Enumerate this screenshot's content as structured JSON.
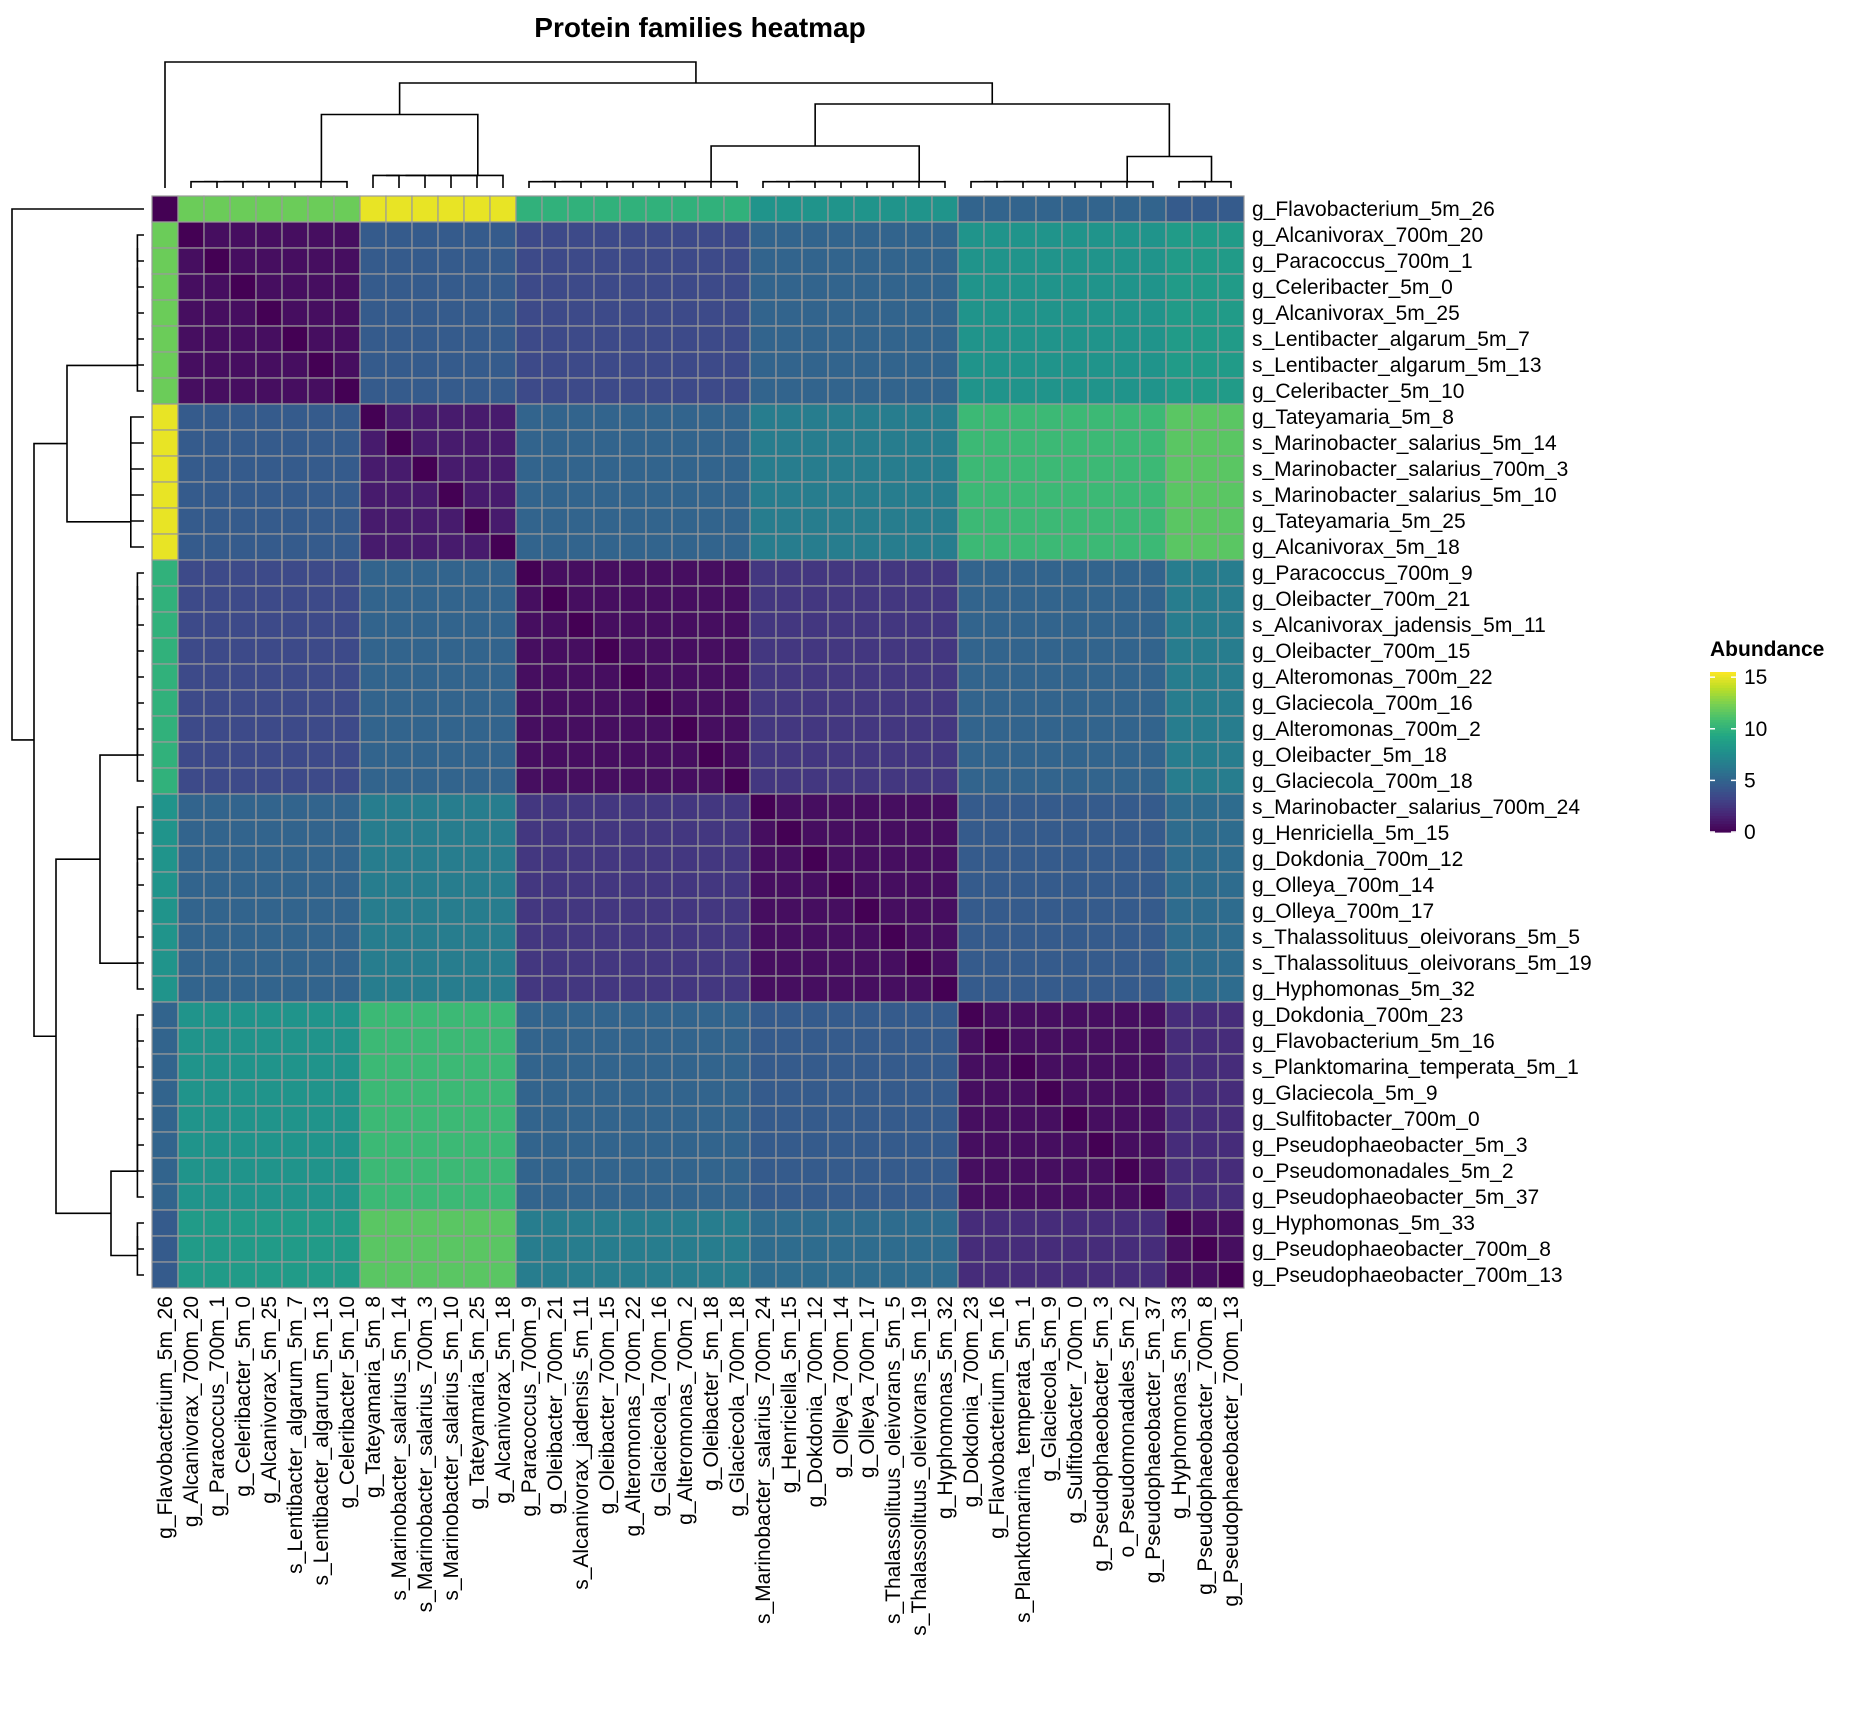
{
  "chart_data": {
    "type": "heatmap",
    "title": "Protein families heatmap",
    "legend": {
      "title": "Abundance",
      "ticks": [
        15,
        10,
        5,
        0
      ],
      "range": [
        0,
        15.5
      ],
      "placement": "right",
      "colormap": "viridis"
    },
    "row_labels": [
      "g_Flavobacterium_5m_26",
      "g_Alcanivorax_700m_20",
      "g_Paracoccus_700m_1",
      "g_Celeribacter_5m_0",
      "g_Alcanivorax_5m_25",
      "s_Lentibacter_algarum_5m_7",
      "s_Lentibacter_algarum_5m_13",
      "g_Celeribacter_5m_10",
      "g_Tateyamaria_5m_8",
      "s_Marinobacter_salarius_5m_14",
      "s_Marinobacter_salarius_700m_3",
      "s_Marinobacter_salarius_5m_10",
      "g_Tateyamaria_5m_25",
      "g_Alcanivorax_5m_18",
      "g_Paracoccus_700m_9",
      "g_Oleibacter_700m_21",
      "s_Alcanivorax_jadensis_5m_11",
      "g_Oleibacter_700m_15",
      "g_Alteromonas_700m_22",
      "g_Glaciecola_700m_16",
      "g_Alteromonas_700m_2",
      "g_Oleibacter_5m_18",
      "g_Glaciecola_700m_18",
      "s_Marinobacter_salarius_700m_24",
      "g_Henriciella_5m_15",
      "g_Dokdonia_700m_12",
      "g_Olleya_700m_14",
      "g_Olleya_700m_17",
      "s_Thalassolituus_oleivorans_5m_5",
      "s_Thalassolituus_oleivorans_5m_19",
      "g_Hyphomonas_5m_32",
      "g_Dokdonia_700m_23",
      "g_Flavobacterium_5m_16",
      "s_Planktomarina_temperata_5m_1",
      "g_Glaciecola_5m_9",
      "g_Sulfitobacter_700m_0",
      "g_Pseudophaeobacter_5m_3",
      "o_Pseudomonadales_5m_2",
      "g_Pseudophaeobacter_5m_37",
      "g_Hyphomonas_5m_33",
      "g_Pseudophaeobacter_700m_8",
      "g_Pseudophaeobacter_700m_13"
    ],
    "col_labels": [
      "g_Flavobacterium_5m_26",
      "g_Alcanivorax_700m_20",
      "g_Paracoccus_700m_1",
      "g_Celeribacter_5m_0",
      "g_Alcanivorax_5m_25",
      "s_Lentibacter_algarum_5m_7",
      "s_Lentibacter_algarum_5m_13",
      "g_Celeribacter_5m_10",
      "g_Tateyamaria_5m_8",
      "s_Marinobacter_salarius_5m_14",
      "s_Marinobacter_salarius_700m_3",
      "s_Marinobacter_salarius_5m_10",
      "g_Tateyamaria_5m_25",
      "g_Alcanivorax_5m_18",
      "g_Paracoccus_700m_9",
      "g_Oleibacter_700m_21",
      "s_Alcanivorax_jadensis_5m_11",
      "g_Oleibacter_700m_15",
      "g_Alteromonas_700m_22",
      "g_Glaciecola_700m_16",
      "g_Alteromonas_700m_2",
      "g_Oleibacter_5m_18",
      "g_Glaciecola_700m_18",
      "s_Marinobacter_salarius_700m_24",
      "g_Henriciella_5m_15",
      "g_Dokdonia_700m_12",
      "g_Olleya_700m_14",
      "g_Olleya_700m_17",
      "s_Thalassolituus_oleivorans_5m_5",
      "s_Thalassolituus_oleivorans_5m_19",
      "g_Hyphomonas_5m_32",
      "g_Dokdonia_700m_23",
      "g_Flavobacterium_5m_16",
      "s_Planktomarina_temperata_5m_1",
      "g_Glaciecola_5m_9",
      "g_Sulfitobacter_700m_0",
      "g_Pseudophaeobacter_5m_3",
      "o_Pseudomonadales_5m_2",
      "g_Pseudophaeobacter_5m_37",
      "g_Hyphomonas_5m_33",
      "g_Pseudophaeobacter_700m_8",
      "g_Pseudophaeobacter_700m_13"
    ],
    "groups": [
      {
        "start": 0,
        "end": 0
      },
      {
        "start": 1,
        "end": 7
      },
      {
        "start": 8,
        "end": 13
      },
      {
        "start": 14,
        "end": 22
      },
      {
        "start": 23,
        "end": 30
      },
      {
        "start": 31,
        "end": 38
      },
      {
        "start": 39,
        "end": 41
      }
    ],
    "within_group": [
      {
        "group": 0,
        "value": 0
      },
      {
        "group": 1,
        "value": 0.6
      },
      {
        "group": 2,
        "value": 1.2
      },
      {
        "group": 3,
        "value": 0.6
      },
      {
        "group": 4,
        "value": 0.6
      },
      {
        "group": 5,
        "value": 0.6
      },
      {
        "group": 6,
        "value": 0.6
      }
    ],
    "between_groups": [
      {
        "groups": [
          0,
          1
        ],
        "value": 12
      },
      {
        "groups": [
          0,
          2
        ],
        "value": 15
      },
      {
        "groups": [
          0,
          3
        ],
        "value": 10
      },
      {
        "groups": [
          0,
          4
        ],
        "value": 8
      },
      {
        "groups": [
          0,
          5
        ],
        "value": 5
      },
      {
        "groups": [
          0,
          6
        ],
        "value": 4.5
      },
      {
        "groups": [
          1,
          2
        ],
        "value": 4.5
      },
      {
        "groups": [
          1,
          3
        ],
        "value": 3.5
      },
      {
        "groups": [
          1,
          4
        ],
        "value": 5
      },
      {
        "groups": [
          1,
          5
        ],
        "value": 8
      },
      {
        "groups": [
          1,
          6
        ],
        "value": 8.5
      },
      {
        "groups": [
          2,
          3
        ],
        "value": 5
      },
      {
        "groups": [
          2,
          4
        ],
        "value": 6.5
      },
      {
        "groups": [
          2,
          5
        ],
        "value": 10.5
      },
      {
        "groups": [
          2,
          6
        ],
        "value": 11.5
      },
      {
        "groups": [
          3,
          4
        ],
        "value": 2.5
      },
      {
        "groups": [
          3,
          5
        ],
        "value": 5
      },
      {
        "groups": [
          3,
          6
        ],
        "value": 6.5
      },
      {
        "groups": [
          4,
          5
        ],
        "value": 4.5
      },
      {
        "groups": [
          4,
          6
        ],
        "value": 5.5
      },
      {
        "groups": [
          5,
          6
        ],
        "value": 2
      }
    ]
  }
}
